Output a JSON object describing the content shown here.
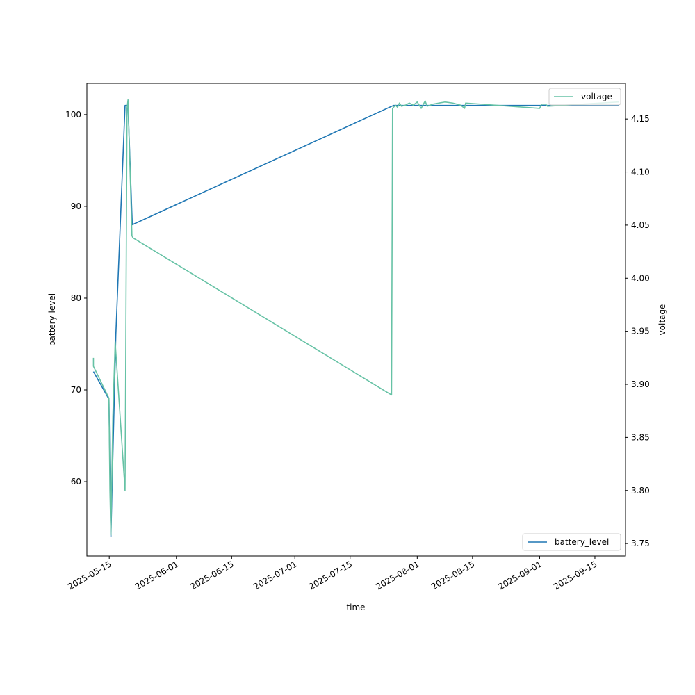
{
  "chart_data": {
    "type": "line",
    "title": "",
    "xlabel": "time",
    "ylabel_left": "battery level",
    "ylabel_right": "voltage",
    "x_ticks": [
      "2025-05-15",
      "2025-06-01",
      "2025-06-15",
      "2025-07-01",
      "2025-07-15",
      "2025-08-01",
      "2025-08-15",
      "2025-09-01",
      "2025-09-15"
    ],
    "y_left_ticks": [
      60,
      70,
      80,
      90,
      100
    ],
    "y_right_ticks": [
      "3.75",
      "3.80",
      "3.85",
      "3.90",
      "3.95",
      "4.00",
      "4.05",
      "4.10",
      "4.15"
    ],
    "xlim": [
      "2025-05-09T08:00",
      "2025-09-22T18:00"
    ],
    "ylim_left": [
      51.9,
      103.4
    ],
    "ylim_right": [
      3.7383,
      4.1835
    ],
    "grid": false,
    "series": [
      {
        "name": "battery_level",
        "axis": "left",
        "color": "#1f77b4",
        "legend_position": "lower-right",
        "points": [
          [
            "2025-05-11T00:00",
            72.0
          ],
          [
            "2025-05-14T22:00",
            69.0
          ],
          [
            "2025-05-15T10:00",
            54.0
          ],
          [
            "2025-05-16T16:00",
            76.0
          ],
          [
            "2025-05-19T00:00",
            101.0
          ],
          [
            "2025-05-19T18:00",
            101.0
          ],
          [
            "2025-05-20T20:00",
            88.0
          ],
          [
            "2025-07-26T00:00",
            101.0
          ],
          [
            "2025-09-18T00:00",
            101.0
          ],
          [
            "2025-09-21T00:00",
            101.0
          ]
        ]
      },
      {
        "name": "voltage",
        "axis": "right",
        "color": "#66c2a5",
        "legend_position": "upper-right",
        "points": [
          [
            "2025-05-11T00:00",
            3.925
          ],
          [
            "2025-05-11T00:00",
            3.917
          ],
          [
            "2025-05-14T22:00",
            3.887
          ],
          [
            "2025-05-15T04:00",
            3.8
          ],
          [
            "2025-05-15T10:00",
            3.758
          ],
          [
            "2025-05-15T22:00",
            3.87
          ],
          [
            "2025-05-16T12:00",
            3.94
          ],
          [
            "2025-05-19T00:00",
            3.8
          ],
          [
            "2025-05-19T12:00",
            4.16
          ],
          [
            "2025-05-19T18:00",
            4.168
          ],
          [
            "2025-05-20T18:00",
            4.04
          ],
          [
            "2025-05-21T00:00",
            4.038
          ],
          [
            "2025-07-25T12:00",
            3.89
          ],
          [
            "2025-07-25T18:00",
            4.16
          ],
          [
            "2025-07-26T12:00",
            4.163
          ],
          [
            "2025-07-27T00:00",
            4.161
          ],
          [
            "2025-07-27T12:00",
            4.165
          ],
          [
            "2025-07-28T00:00",
            4.162
          ],
          [
            "2025-07-29T00:00",
            4.163
          ],
          [
            "2025-07-30T00:00",
            4.165
          ],
          [
            "2025-07-31T00:00",
            4.163
          ],
          [
            "2025-08-01T00:00",
            4.166
          ],
          [
            "2025-08-02T00:00",
            4.16
          ],
          [
            "2025-08-03T00:00",
            4.167
          ],
          [
            "2025-08-03T12:00",
            4.162
          ],
          [
            "2025-08-05T00:00",
            4.164
          ],
          [
            "2025-08-08T00:00",
            4.166
          ],
          [
            "2025-08-10T00:00",
            4.165
          ],
          [
            "2025-08-12T00:00",
            4.163
          ],
          [
            "2025-08-13T00:00",
            4.16
          ],
          [
            "2025-08-13T06:00",
            4.165
          ],
          [
            "2025-09-01T00:00",
            4.16
          ],
          [
            "2025-09-01T12:00",
            4.164
          ],
          [
            "2025-09-02T12:00",
            4.164
          ],
          [
            "2025-09-03T00:00",
            4.162
          ],
          [
            "2025-09-21T00:00",
            4.166
          ]
        ]
      }
    ]
  }
}
